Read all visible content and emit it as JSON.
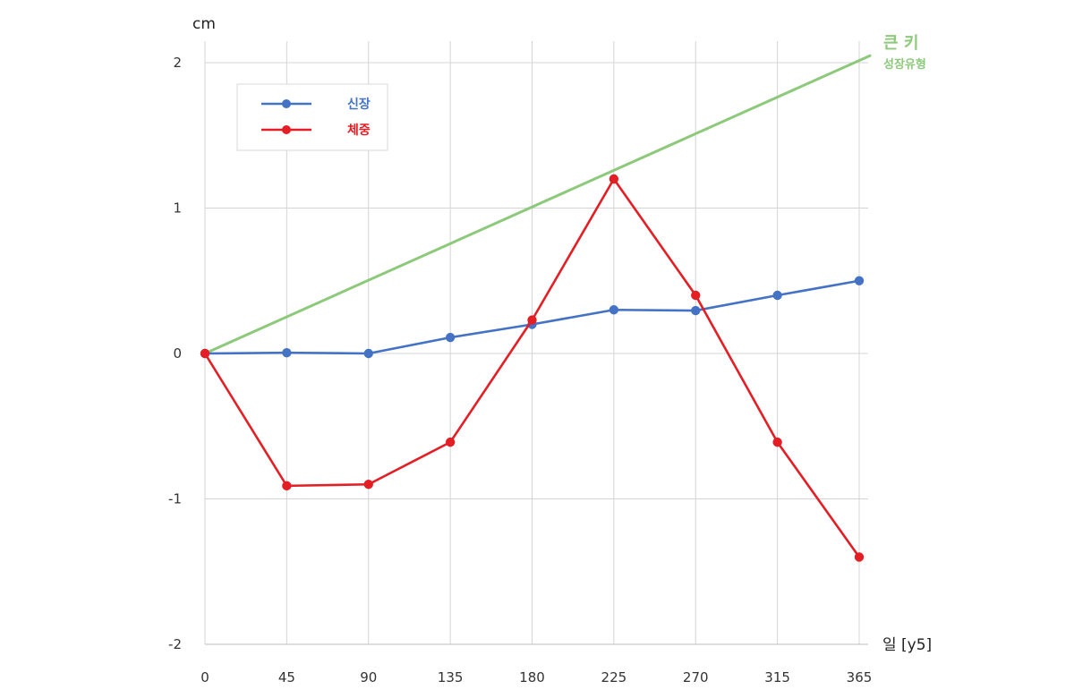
{
  "chart_data": {
    "type": "line",
    "ylabel": "cm",
    "xlabel": "일  [y5]",
    "x": [
      0,
      45,
      90,
      135,
      180,
      225,
      270,
      315,
      365
    ],
    "x_tick_labels": [
      "0",
      "45",
      "90",
      "135",
      "180",
      "225",
      "270",
      "315",
      "365"
    ],
    "ylim": [
      -2,
      2
    ],
    "y_ticks": [
      -2,
      -1,
      0,
      1,
      2
    ],
    "y_tick_labels": [
      "-2",
      "-1",
      "0",
      "1",
      "2"
    ],
    "grid": true,
    "legend_position": "top-left",
    "series": [
      {
        "name": "신장",
        "color": "#4472c4",
        "values": [
          0,
          0.005,
          0.0,
          0.11,
          0.2,
          0.3,
          0.295,
          0.4,
          0.5
        ]
      },
      {
        "name": "체중",
        "color": "#e31e24",
        "values": [
          0,
          -0.91,
          -0.9,
          -0.61,
          0.23,
          1.2,
          0.4,
          -0.61,
          -1.4
        ]
      }
    ],
    "trend_line": {
      "color": "#8cc97a",
      "label": "큰 키",
      "sublabel": "성장유형",
      "start": {
        "x": 0,
        "y": 0
      },
      "end": {
        "x": 365,
        "y": 2.03
      }
    }
  }
}
